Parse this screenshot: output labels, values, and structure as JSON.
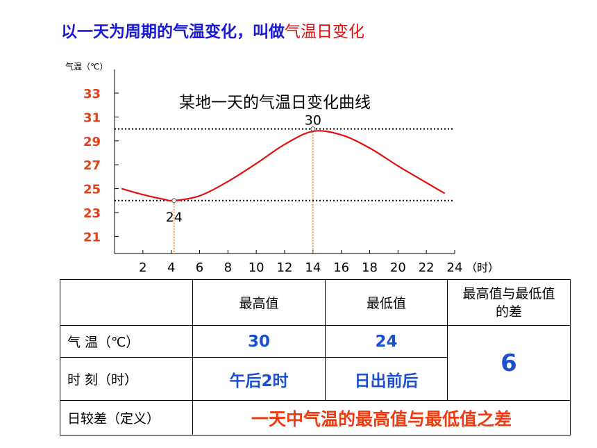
{
  "heading": {
    "part1": "以一天为周期的气温变化，叫做",
    "part2": "气温日变化"
  },
  "chart_data": {
    "type": "line",
    "title": "某地一天的气温日变化曲线",
    "ylabel": "气温（℃）",
    "xlabel": "（时）",
    "xlim": [
      0,
      24
    ],
    "ylim": [
      19,
      34
    ],
    "x_ticks": [
      2,
      4,
      6,
      8,
      10,
      12,
      14,
      16,
      18,
      20,
      22,
      24
    ],
    "y_ticks": [
      21,
      23,
      25,
      27,
      29,
      31,
      33
    ],
    "series": [
      {
        "x": [
          0.5,
          2,
          3.5,
          4.2,
          6,
          8,
          10,
          12,
          14,
          16,
          18,
          20,
          22,
          23.3
        ],
        "y": [
          25,
          24.5,
          24.1,
          24,
          24.4,
          25.6,
          27.1,
          28.7,
          29.8,
          29.5,
          28.4,
          26.9,
          25.5,
          24.6
        ]
      }
    ],
    "reference_lines": {
      "max": 30,
      "min": 24
    },
    "annotations": [
      {
        "label": "30",
        "x": 14,
        "y": 30
      },
      {
        "label": "24",
        "x": 4.2,
        "y": 24
      }
    ],
    "colors": {
      "line": "#e01010",
      "tick_y": "#e0401a",
      "guide": "#f08020"
    }
  },
  "table": {
    "headers": [
      "",
      "最高值",
      "最低值",
      "最高值与最低值的差"
    ],
    "rows": [
      {
        "label": "气 温（℃）",
        "max": "30",
        "min": "24"
      },
      {
        "label": "时 刻（时）",
        "max": "午后2时",
        "min": "日出前后"
      }
    ],
    "diff": "6",
    "def_label": "日较差（定义）",
    "definition": "一天中气温的最高值与最低值之差"
  }
}
